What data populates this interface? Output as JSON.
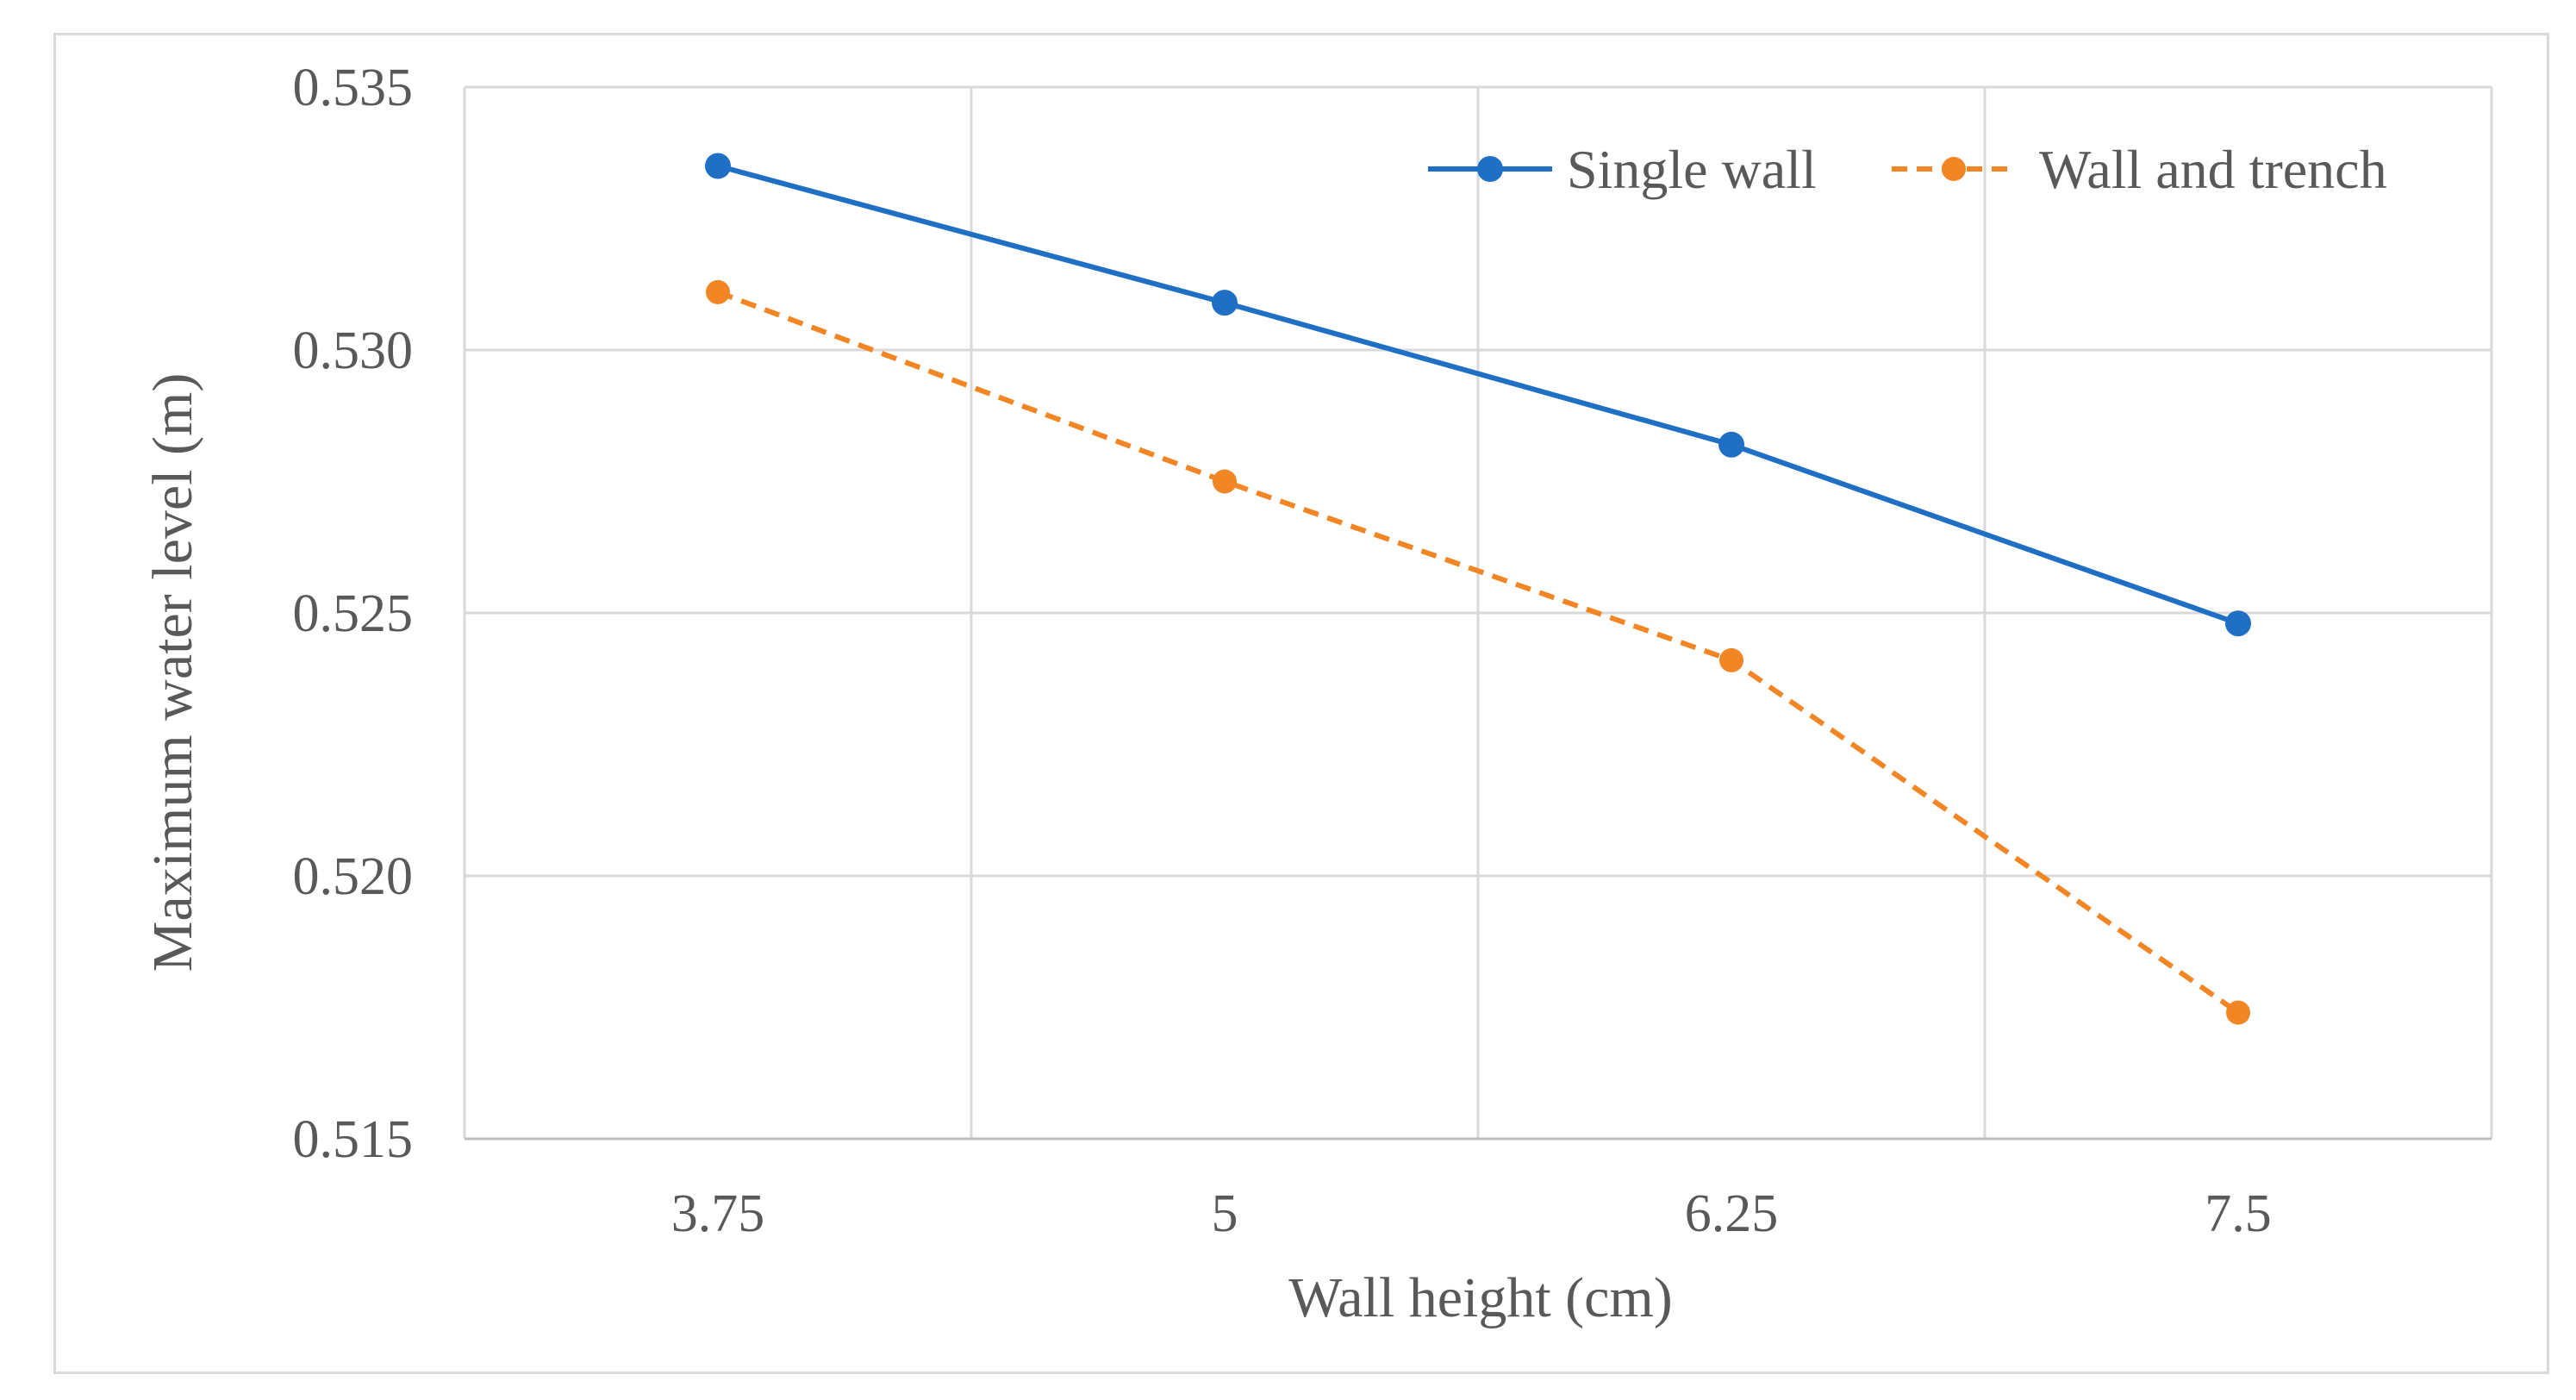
{
  "chart_data": {
    "type": "line",
    "title": "",
    "xlabel": "Wall height (cm)",
    "ylabel": "Maximum water level (m)",
    "categories": [
      "3.75",
      "5",
      "6.25",
      "7.5"
    ],
    "ylim": [
      0.515,
      0.535
    ],
    "yticks": [
      "0.515",
      "0.520",
      "0.525",
      "0.530",
      "0.535"
    ],
    "ytick_values": [
      0.515,
      0.52,
      0.525,
      0.53,
      0.535
    ],
    "grid": true,
    "legend_position": "top-right",
    "series": [
      {
        "name": "Single wall",
        "values": [
          0.5335,
          0.5309,
          0.5282,
          0.5248
        ],
        "color": "#1f6fc5",
        "style": "solid"
      },
      {
        "name": "Wall and trench",
        "values": [
          0.5311,
          0.5275,
          0.5241,
          0.5174
        ],
        "color": "#f28524",
        "style": "dashed"
      }
    ]
  }
}
